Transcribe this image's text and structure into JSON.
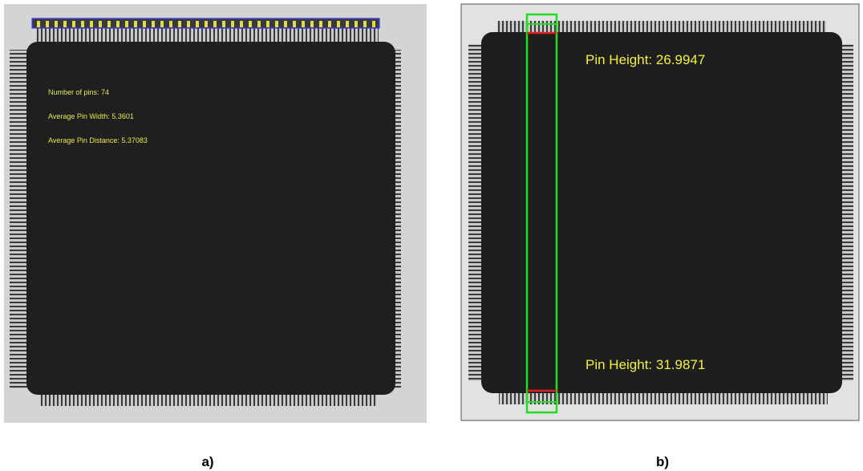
{
  "panels": [
    {
      "label": "a)",
      "annotations": [
        "Number of pins: 74",
        "Average Pin Width:  5.3601",
        "Average Pin Distance:  5.37083"
      ]
    },
    {
      "label": "b)",
      "annotations": [
        "Pin Height:  26.9947",
        "Pin Height:  31.9871"
      ]
    }
  ]
}
